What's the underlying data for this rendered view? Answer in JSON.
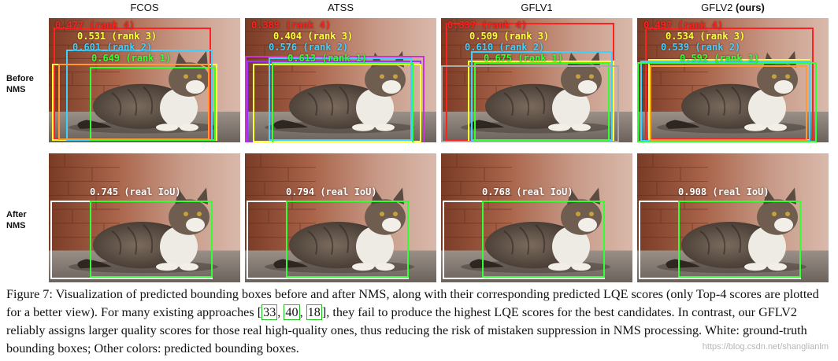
{
  "columns": [
    {
      "name": "FCOS",
      "suffix": ""
    },
    {
      "name": "ATSS",
      "suffix": ""
    },
    {
      "name": "GFLV1",
      "suffix": ""
    },
    {
      "name": "GFLV2 ",
      "suffix": "(ours)"
    }
  ],
  "rows": [
    {
      "label_line1": "Before",
      "label_line2": "NMS"
    },
    {
      "label_line1": "After",
      "label_line2": "NMS"
    }
  ],
  "before_nms": [
    [
      {
        "text": "0.477 (rank 4)",
        "color": "#ff2020"
      },
      {
        "text": "0.531 (rank 3)",
        "color": "#ffff33"
      },
      {
        "text": "0.601 (rank 2)",
        "color": "#3fd0ff"
      },
      {
        "text": "0.649 (rank 1)",
        "color": "#33ff33"
      }
    ],
    [
      {
        "text": "0.389 (rank 4)",
        "color": "#ff2020"
      },
      {
        "text": "0.404 (rank 3)",
        "color": "#ffff33"
      },
      {
        "text": "0.576 (rank 2)",
        "color": "#3fd0ff"
      },
      {
        "text": "0.613 (rank 1)",
        "color": "#33ff33"
      }
    ],
    [
      {
        "text": "0.337 (rank 4)",
        "color": "#ff2020"
      },
      {
        "text": "0.509 (rank 3)",
        "color": "#ffff33"
      },
      {
        "text": "0.610 (rank 2)",
        "color": "#3fd0ff"
      },
      {
        "text": "0.675 (rank 1)",
        "color": "#33ff33"
      }
    ],
    [
      {
        "text": "0.497 (rank 4)",
        "color": "#ff2020"
      },
      {
        "text": "0.534 (rank 3)",
        "color": "#ffff33"
      },
      {
        "text": "0.539 (rank 2)",
        "color": "#3fd0ff"
      },
      {
        "text": "0.592 (rank 1)",
        "color": "#33ff33"
      }
    ]
  ],
  "after_nms": [
    {
      "text": "0.745 (real IoU)",
      "color": "#ffffff"
    },
    {
      "text": "0.794 (real IoU)",
      "color": "#ffffff"
    },
    {
      "text": "0.768 (real IoU)",
      "color": "#ffffff"
    },
    {
      "text": "0.908 (real IoU)",
      "color": "#ffffff"
    }
  ],
  "caption": {
    "part1": "Figure 7: Visualization of predicted bounding boxes before and after NMS, along with their corresponding predicted LQE scores (only Top-4 scores are plotted for a better view). For many existing approaches [",
    "ref1": "33",
    "sep1": ", ",
    "ref2": "40",
    "sep2": ", ",
    "ref3": "18",
    "part2": "], they fail to produce the highest LQE scores for the best candidates. In contrast, our GFLV2 reliably assigns larger quality scores for those real high-quality ones, thus reducing the risk of mistaken suppression in NMS processing. White: ground-truth bounding boxes; Other colors: predicted bounding boxes."
  },
  "watermark": "https://blog.csdn.net/shanglianlm"
}
